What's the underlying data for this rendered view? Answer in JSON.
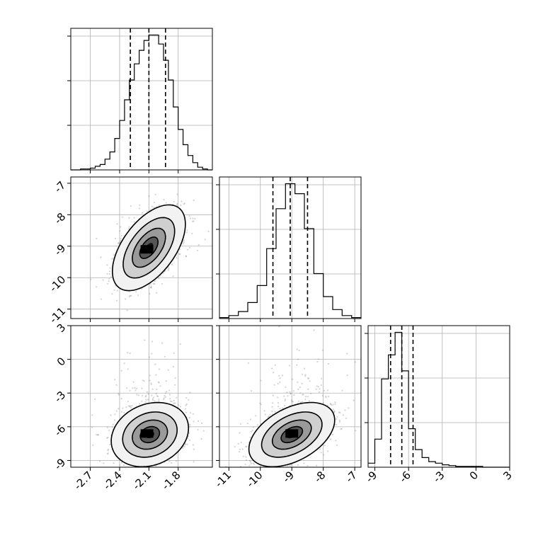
{
  "chart_data": {
    "type": "corner",
    "title": "",
    "colors": {
      "hist": "#000000",
      "grid": "#b0b0b0",
      "scatter": "#808080",
      "density_dark": "#000000"
    },
    "params": [
      {
        "name": "",
        "range": [
          -2.9,
          -1.45
        ],
        "ticks": [
          -2.7,
          -2.4,
          -2.1,
          -1.8
        ],
        "tick_labels": [
          "-2.7",
          "-2.4",
          "-2.1",
          "-1.8"
        ],
        "quantiles": [
          -2.29,
          -2.1,
          -1.93
        ]
      },
      {
        "name": "",
        "range": [
          -11.3,
          -6.8
        ],
        "ticks": [
          -11,
          -10,
          -9,
          -8,
          -7
        ],
        "tick_labels": [
          "-11",
          "-10",
          "-9",
          "-8",
          "-7"
        ],
        "quantiles": [
          -9.6,
          -9.05,
          -8.5
        ]
      },
      {
        "name": "",
        "range": [
          -9.6,
          3.0
        ],
        "ticks": [
          -9,
          -6,
          -3,
          0,
          3
        ],
        "tick_labels": [
          "-9",
          "-6",
          "-3",
          "0",
          "3"
        ],
        "quantiles": [
          -7.6,
          -6.6,
          -5.6
        ]
      }
    ],
    "histograms": [
      {
        "param": 0,
        "bins": [
          -2.9,
          -2.85,
          -2.8,
          -2.75,
          -2.7,
          -2.65,
          -2.6,
          -2.55,
          -2.5,
          -2.45,
          -2.4,
          -2.35,
          -2.3,
          -2.25,
          -2.2,
          -2.15,
          -2.1,
          -2.05,
          -2.0,
          -1.95,
          -1.9,
          -1.85,
          -1.8,
          -1.75,
          -1.7,
          -1.65,
          -1.6,
          -1.55,
          -1.5,
          -1.45
        ],
        "counts": [
          0,
          0,
          1,
          1,
          2,
          4,
          6,
          12,
          20,
          35,
          55,
          78,
          100,
          118,
          133,
          144,
          150,
          150,
          140,
          122,
          100,
          70,
          45,
          28,
          16,
          8,
          3,
          1,
          0
        ]
      },
      {
        "param": 1,
        "bins": [
          -11.3,
          -11.0,
          -10.7,
          -10.4,
          -10.1,
          -9.8,
          -9.5,
          -9.2,
          -8.9,
          -8.6,
          -8.3,
          -8.0,
          -7.7,
          -7.4,
          -7.1,
          -6.8
        ],
        "counts": [
          1,
          3,
          7,
          16,
          33,
          70,
          110,
          135,
          125,
          90,
          45,
          22,
          9,
          3,
          1
        ]
      },
      {
        "param": 2,
        "bins": [
          -9.6,
          -9.0,
          -8.4,
          -7.8,
          -7.2,
          -6.6,
          -6.0,
          -5.4,
          -4.8,
          -4.2,
          -3.6,
          -3.0,
          -2.4,
          -1.8,
          -1.2,
          -0.6,
          0.0,
          0.6,
          1.2,
          1.8,
          2.4,
          3.0
        ],
        "counts": [
          5,
          35,
          110,
          140,
          168,
          120,
          48,
          22,
          12,
          7,
          5,
          3,
          2,
          1,
          1,
          1,
          1,
          0,
          0,
          0,
          0
        ]
      }
    ],
    "pairs": [
      {
        "x_param": 0,
        "y_param": 1,
        "center": [
          -2.1,
          -9.05
        ],
        "sigma": [
          0.17,
          0.62
        ],
        "rho": 0.55,
        "peak": [
          -2.12,
          -9.1
        ]
      },
      {
        "x_param": 0,
        "y_param": 2,
        "center": [
          -2.09,
          -6.7
        ],
        "sigma": [
          0.18,
          1.3
        ],
        "rho": 0.2,
        "peak": [
          -2.12,
          -6.6
        ]
      },
      {
        "x_param": 1,
        "y_param": 2,
        "center": [
          -9.0,
          -6.7
        ],
        "sigma": [
          0.62,
          1.3
        ],
        "rho": 0.45,
        "peak": [
          -9.0,
          -6.6
        ]
      }
    ],
    "grid": true
  }
}
